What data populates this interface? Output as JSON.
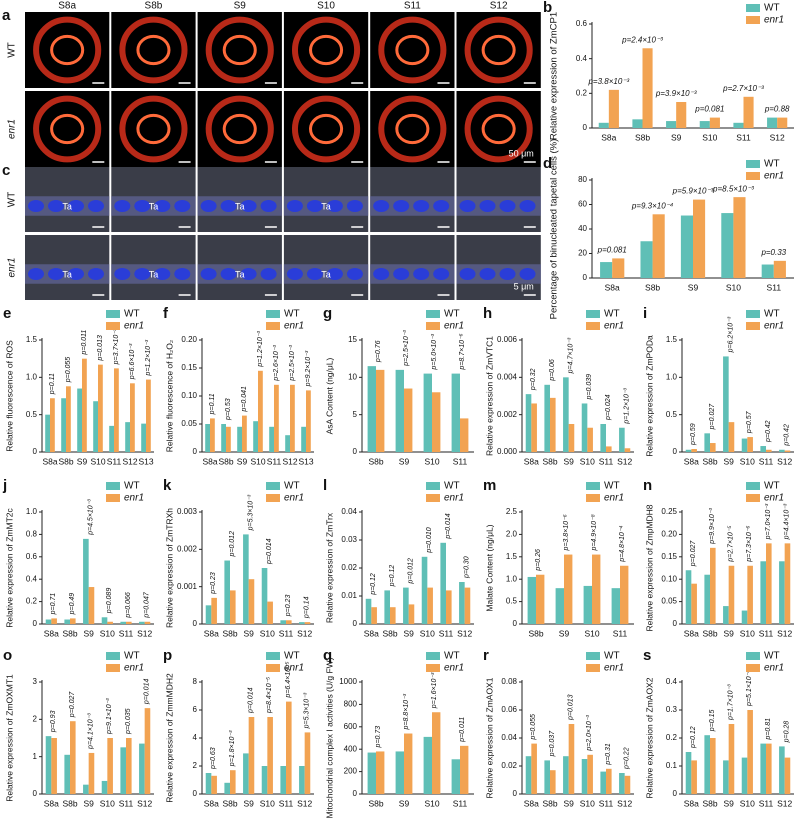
{
  "micrographs": {
    "columns": [
      "S8a",
      "S8b",
      "S9",
      "S10",
      "S11",
      "S12"
    ],
    "panel_a": {
      "label": "a",
      "rows": [
        "WT",
        "enr1"
      ],
      "scale": "50 μm"
    },
    "panel_c": {
      "label": "c",
      "rows": [
        "WT",
        "enr1"
      ],
      "scale": "5 μm",
      "tissue": "Ta"
    }
  },
  "chart_data": [
    {
      "type": "bar",
      "label": "b",
      "ylabel": "Relative expression of ZmCP1",
      "categories": [
        "S8a",
        "S8b",
        "S9",
        "S10",
        "S11",
        "S12"
      ],
      "series": [
        {
          "name": "WT",
          "color": "#5fbfb6",
          "values": [
            0.03,
            0.05,
            0.04,
            0.04,
            0.03,
            0.06
          ]
        },
        {
          "name": "enr1",
          "color": "#f2a352",
          "values": [
            0.22,
            0.46,
            0.15,
            0.06,
            0.18,
            0.06
          ]
        }
      ],
      "annotations": [
        "p=3.8×10⁻³",
        "p=2.4×10⁻³",
        "p=3.9×10⁻³",
        "p=0.081",
        "p=2.7×10⁻³",
        "p=0.88"
      ],
      "ylim": [
        0,
        0.6
      ],
      "yticks": [
        0,
        0.2,
        0.4,
        0.6
      ]
    },
    {
      "type": "bar",
      "label": "d",
      "ylabel": "Percentage of binucleated tapetal cells (%)",
      "categories": [
        "S8a",
        "S8b",
        "S9",
        "S10",
        "S11"
      ],
      "series": [
        {
          "name": "WT",
          "color": "#5fbfb6",
          "values": [
            13,
            30,
            51,
            53,
            11
          ]
        },
        {
          "name": "enr1",
          "color": "#f2a352",
          "values": [
            16,
            52,
            64,
            66,
            14
          ]
        }
      ],
      "annotations": [
        "p=0.081",
        "p=9.3×10⁻⁴",
        "p=5.9×10⁻³",
        "p=8.5×10⁻³",
        "p=0.33"
      ],
      "ylim": [
        0,
        80
      ],
      "yticks": [
        0,
        20,
        40,
        60,
        80
      ]
    },
    {
      "type": "bar",
      "label": "e",
      "ylabel": "Relative fluorescence of ROS",
      "categories": [
        "S8a",
        "S8b",
        "S9",
        "S10",
        "S11",
        "S12",
        "S13"
      ],
      "series": [
        {
          "name": "WT",
          "color": "#5fbfb6",
          "values": [
            0.5,
            0.72,
            0.85,
            0.68,
            0.35,
            0.4,
            0.38
          ]
        },
        {
          "name": "enr1",
          "color": "#f2a352",
          "values": [
            0.72,
            0.88,
            1.25,
            1.17,
            1.12,
            0.92,
            0.97
          ]
        }
      ],
      "annotations": [
        "p=0.11",
        "p=0.055",
        "p=0.011",
        "p=0.013",
        "p=3.7×10⁻³",
        "p=6.6×10⁻³",
        "p=1.2×10⁻³"
      ],
      "ylim": [
        0,
        1.5
      ],
      "yticks": [
        0,
        0.5,
        {
          "value": 1,
          "label": "1.0"
        },
        1.5
      ]
    },
    {
      "type": "bar",
      "label": "f",
      "ylabel": "Relative fluorescence of H₂O₂",
      "categories": [
        "S8a",
        "S8b",
        "S9",
        "S10",
        "S11",
        "S12",
        "S13"
      ],
      "series": [
        {
          "name": "WT",
          "color": "#5fbfb6",
          "values": [
            0.05,
            0.05,
            0.045,
            0.055,
            0.045,
            0.03,
            0.045
          ]
        },
        {
          "name": "enr1",
          "color": "#f2a352",
          "values": [
            0.06,
            0.045,
            0.065,
            0.145,
            0.12,
            0.12,
            0.11
          ]
        }
      ],
      "annotations": [
        "p=0.11",
        "p=0.53",
        "p=0.041",
        "p=1.2×10⁻³",
        "p=2.6×10⁻³",
        "p=2.5×10⁻³",
        "p=9.2×10⁻³"
      ],
      "ylim": [
        0,
        0.2
      ],
      "yticks": [
        0,
        0.05,
        {
          "value": 0.1,
          "label": "0.10"
        },
        0.15,
        {
          "value": 0.2,
          "label": "0.20"
        }
      ]
    },
    {
      "type": "bar",
      "label": "g",
      "ylabel": "AsA Content (ng/μL)",
      "categories": [
        "S8b",
        "S9",
        "S10",
        "S11"
      ],
      "series": [
        {
          "name": "WT",
          "color": "#5fbfb6",
          "values": [
            11.5,
            11,
            10.5,
            10.5
          ]
        },
        {
          "name": "enr1",
          "color": "#f2a352",
          "values": [
            11,
            8.5,
            8,
            4.5
          ]
        }
      ],
      "annotations": [
        "p=0.76",
        "p=2.5×10⁻³",
        "p=5.0×10⁻³",
        "p=8.7×10⁻⁶"
      ],
      "ylim": [
        0,
        15
      ],
      "yticks": [
        0,
        5,
        10,
        15
      ]
    },
    {
      "type": "bar",
      "label": "h",
      "ylabel": "Relative expression of ZmVTC1",
      "categories": [
        "S8a",
        "S8b",
        "S9",
        "S10",
        "S11",
        "S12"
      ],
      "series": [
        {
          "name": "WT",
          "color": "#5fbfb6",
          "values": [
            0.0031,
            0.0036,
            0.004,
            0.0026,
            0.0015,
            0.0013
          ]
        },
        {
          "name": "enr1",
          "color": "#f2a352",
          "values": [
            0.0026,
            0.0029,
            0.0015,
            0.0013,
            0.0003,
            0.0002
          ]
        }
      ],
      "annotations": [
        "p=0.32",
        "p=0.06",
        "p=4.7×10⁻³",
        "p=0.039",
        "p=0.024",
        "p=1.2×10⁻³"
      ],
      "ylim": [
        0,
        0.006
      ],
      "yticks": [
        {
          "value": 0,
          "label": "0.000"
        },
        0.002,
        0.004,
        0.006
      ]
    },
    {
      "type": "bar",
      "label": "i",
      "ylabel": "Relative expression of ZmPODa",
      "categories": [
        "S8a",
        "S8b",
        "S9",
        "S10",
        "S11",
        "S12"
      ],
      "series": [
        {
          "name": "WT",
          "color": "#5fbfb6",
          "values": [
            0.03,
            0.25,
            1.28,
            0.18,
            0.08,
            0.03
          ]
        },
        {
          "name": "enr1",
          "color": "#f2a352",
          "values": [
            0.04,
            0.12,
            0.4,
            0.2,
            0.03,
            0.02
          ]
        }
      ],
      "annotations": [
        "p=0.59",
        "p=0.027",
        "p=6.2×10⁻³",
        "p=0.57",
        "p=0.42",
        "p=0.42"
      ],
      "ylim": [
        0,
        1.5
      ],
      "yticks": [
        0,
        0.5,
        {
          "value": 1,
          "label": "1.0"
        },
        1.5
      ]
    },
    {
      "type": "bar",
      "label": "j",
      "ylabel": "Relative expression of ZmMT2c",
      "categories": [
        "S8a",
        "S8b",
        "S9",
        "S10",
        "S11",
        "S12"
      ],
      "series": [
        {
          "name": "WT",
          "color": "#5fbfb6",
          "values": [
            0.04,
            0.04,
            0.76,
            0.06,
            0.02,
            0.02
          ]
        },
        {
          "name": "enr1",
          "color": "#f2a352",
          "values": [
            0.05,
            0.05,
            0.33,
            0.02,
            0.02,
            0.02
          ]
        }
      ],
      "annotations": [
        "p=0.71",
        "p=0.49",
        "p=4.5×10⁻³",
        "p=0.089",
        "p=0.066",
        "p=0.047"
      ],
      "ylim": [
        0,
        1
      ],
      "yticks": [
        0,
        0.2,
        0.4,
        0.6,
        0.8,
        {
          "value": 1,
          "label": "1.0"
        }
      ]
    },
    {
      "type": "bar",
      "label": "k",
      "ylabel": "Relative expression of ZmTRXh",
      "categories": [
        "S8a",
        "S8b",
        "S9",
        "S10",
        "S11",
        "S12"
      ],
      "series": [
        {
          "name": "WT",
          "color": "#5fbfb6",
          "values": [
            0.0005,
            0.0017,
            0.0024,
            0.0015,
            0.0001,
            5e-05
          ]
        },
        {
          "name": "enr1",
          "color": "#f2a352",
          "values": [
            0.0007,
            0.0009,
            0.0012,
            0.0006,
            0.0001,
            5e-05
          ]
        }
      ],
      "annotations": [
        "p=0.23",
        "p=0.012",
        "p=5.3×10⁻³",
        "p=0.014",
        "p=0.23",
        "p=0.14"
      ],
      "ylim": [
        0,
        0.003
      ],
      "yticks": [
        0,
        0.001,
        0.002,
        0.003
      ]
    },
    {
      "type": "bar",
      "label": "l",
      "ylabel": "Relative expression of ZmTrx",
      "categories": [
        "S8a",
        "S8b",
        "S9",
        "S10",
        "S11",
        "S12"
      ],
      "series": [
        {
          "name": "WT",
          "color": "#5fbfb6",
          "values": [
            0.009,
            0.012,
            0.013,
            0.024,
            0.029,
            0.015
          ]
        },
        {
          "name": "enr1",
          "color": "#f2a352",
          "values": [
            0.006,
            0.006,
            0.007,
            0.013,
            0.012,
            0.013
          ]
        }
      ],
      "annotations": [
        "p=0.12",
        "p=0.12",
        "p=0.012",
        "p=0.010",
        "p=0.014",
        "p=0.30"
      ],
      "ylim": [
        0,
        0.04
      ],
      "yticks": [
        0,
        0.01,
        0.02,
        0.03,
        0.04
      ]
    },
    {
      "type": "bar",
      "label": "m",
      "ylabel": "Malate Content (ng/μL)",
      "categories": [
        "S8b",
        "S9",
        "S10",
        "S11"
      ],
      "series": [
        {
          "name": "WT",
          "color": "#5fbfb6",
          "values": [
            1.05,
            0.8,
            0.85,
            0.8
          ]
        },
        {
          "name": "enr1",
          "color": "#f2a352",
          "values": [
            1.1,
            1.55,
            1.55,
            1.3
          ]
        }
      ],
      "annotations": [
        "p=0.26",
        "p=3.8×10⁻⁶",
        "p=4.9×10⁻⁸",
        "p=4.8×10⁻⁴"
      ],
      "ylim": [
        0,
        2.5
      ],
      "yticks": [
        0,
        0.5,
        {
          "value": 1,
          "label": "1.0"
        },
        1.5,
        {
          "value": 2,
          "label": "2.0"
        },
        2.5
      ]
    },
    {
      "type": "bar",
      "label": "n",
      "ylabel": "Relative expression of ZmpMDH8",
      "categories": [
        "S8a",
        "S8b",
        "S9",
        "S10",
        "S11",
        "S12"
      ],
      "series": [
        {
          "name": "WT",
          "color": "#5fbfb6",
          "values": [
            0.12,
            0.11,
            0.04,
            0.03,
            0.14,
            0.14
          ]
        },
        {
          "name": "enr1",
          "color": "#f2a352",
          "values": [
            0.09,
            0.17,
            0.13,
            0.13,
            0.18,
            0.18
          ]
        }
      ],
      "annotations": [
        "p=0.027",
        "p=9.9×10⁻³",
        "p=2.7×10⁻⁵",
        "p=7.3×10⁻⁶",
        "p=7.0×10⁻³",
        "p=4.4×10⁻³"
      ],
      "ylim": [
        0,
        0.25
      ],
      "yticks": [
        0,
        0.05,
        {
          "value": 0.1,
          "label": "0.10"
        },
        0.15,
        {
          "value": 0.2,
          "label": "0.20"
        },
        0.25
      ]
    },
    {
      "type": "bar",
      "label": "o",
      "ylabel": "Relative expression of ZmOXMT1",
      "categories": [
        "S8a",
        "S8b",
        "S9",
        "S10",
        "S11",
        "S12"
      ],
      "series": [
        {
          "name": "WT",
          "color": "#5fbfb6",
          "values": [
            1.55,
            1.05,
            0.25,
            0.35,
            1.25,
            1.35
          ]
        },
        {
          "name": "enr1",
          "color": "#f2a352",
          "values": [
            1.5,
            1.95,
            1.1,
            1.5,
            1.5,
            2.3
          ]
        }
      ],
      "annotations": [
        "p=0.93",
        "p=0.027",
        "p=4.1×10⁻³",
        "p=9.1×10⁻³",
        "p=0.035",
        "p=0.014"
      ],
      "ylim": [
        0,
        3
      ],
      "yticks": [
        0,
        1,
        2,
        3
      ]
    },
    {
      "type": "bar",
      "label": "p",
      "ylabel": "Relative expression of ZmmMDH2",
      "categories": [
        "S8a",
        "S8b",
        "S9",
        "S10",
        "S11",
        "S12"
      ],
      "series": [
        {
          "name": "WT",
          "color": "#5fbfb6",
          "values": [
            1.5,
            0.8,
            2.9,
            2,
            2,
            2
          ]
        },
        {
          "name": "enr1",
          "color": "#f2a352",
          "values": [
            1.3,
            1.7,
            5.5,
            5.5,
            6.6,
            4.4
          ]
        }
      ],
      "annotations": [
        "p=0.63",
        "p=1.8×10⁻³",
        "p=0.014",
        "p=8.4×10⁻⁵",
        "p=6.4×10⁻⁵",
        "p=5.3×10⁻³"
      ],
      "ylim": [
        0,
        8
      ],
      "yticks": [
        0,
        2,
        4,
        6,
        8
      ]
    },
    {
      "type": "bar",
      "label": "q",
      "ylabel": "Mitochondrial complex I activities (U/g FW)",
      "categories": [
        "S8b",
        "S9",
        "S10",
        "S11"
      ],
      "series": [
        {
          "name": "WT",
          "color": "#5fbfb6",
          "values": [
            370,
            380,
            510,
            310
          ]
        },
        {
          "name": "enr1",
          "color": "#f2a352",
          "values": [
            380,
            540,
            730,
            430
          ]
        }
      ],
      "annotations": [
        "p=0.73",
        "p=8.8×10⁻³",
        "p=1.6×10⁻³",
        "p=0.011"
      ],
      "ylim": [
        0,
        1000
      ],
      "yticks": [
        0,
        200,
        400,
        600,
        800,
        1000
      ]
    },
    {
      "type": "bar",
      "label": "r",
      "ylabel": "Relative expression of ZmAOX1",
      "categories": [
        "S8a",
        "S8b",
        "S9",
        "S10",
        "S11",
        "S12"
      ],
      "series": [
        {
          "name": "WT",
          "color": "#5fbfb6",
          "values": [
            0.027,
            0.024,
            0.027,
            0.025,
            0.016,
            0.015
          ]
        },
        {
          "name": "enr1",
          "color": "#f2a352",
          "values": [
            0.036,
            0.017,
            0.05,
            0.028,
            0.018,
            0.013
          ]
        }
      ],
      "annotations": [
        "p=0.055",
        "p=0.037",
        "p=0.013",
        "p=2.0×10⁻³",
        "p=0.31",
        "p=0.22"
      ],
      "ylim": [
        0,
        0.08
      ],
      "yticks": [
        0,
        0.02,
        0.04,
        0.06,
        0.08
      ]
    },
    {
      "type": "bar",
      "label": "s",
      "ylabel": "Relative expression of ZmAOX2",
      "categories": [
        "S8a",
        "S8b",
        "S9",
        "S10",
        "S11",
        "S12"
      ],
      "series": [
        {
          "name": "WT",
          "color": "#5fbfb6",
          "values": [
            0.15,
            0.21,
            0.12,
            0.13,
            0.18,
            0.17
          ]
        },
        {
          "name": "enr1",
          "color": "#f2a352",
          "values": [
            0.12,
            0.2,
            0.25,
            0.3,
            0.18,
            0.13
          ]
        }
      ],
      "annotations": [
        "p=0.12",
        "p=0.15",
        "p=1.7×10⁻³",
        "p=5.1×10⁻⁴",
        "p=0.81",
        "p=0.28"
      ],
      "ylim": [
        0,
        0.4
      ],
      "yticks": [
        0,
        0.1,
        0.2,
        0.3,
        0.4
      ]
    }
  ]
}
